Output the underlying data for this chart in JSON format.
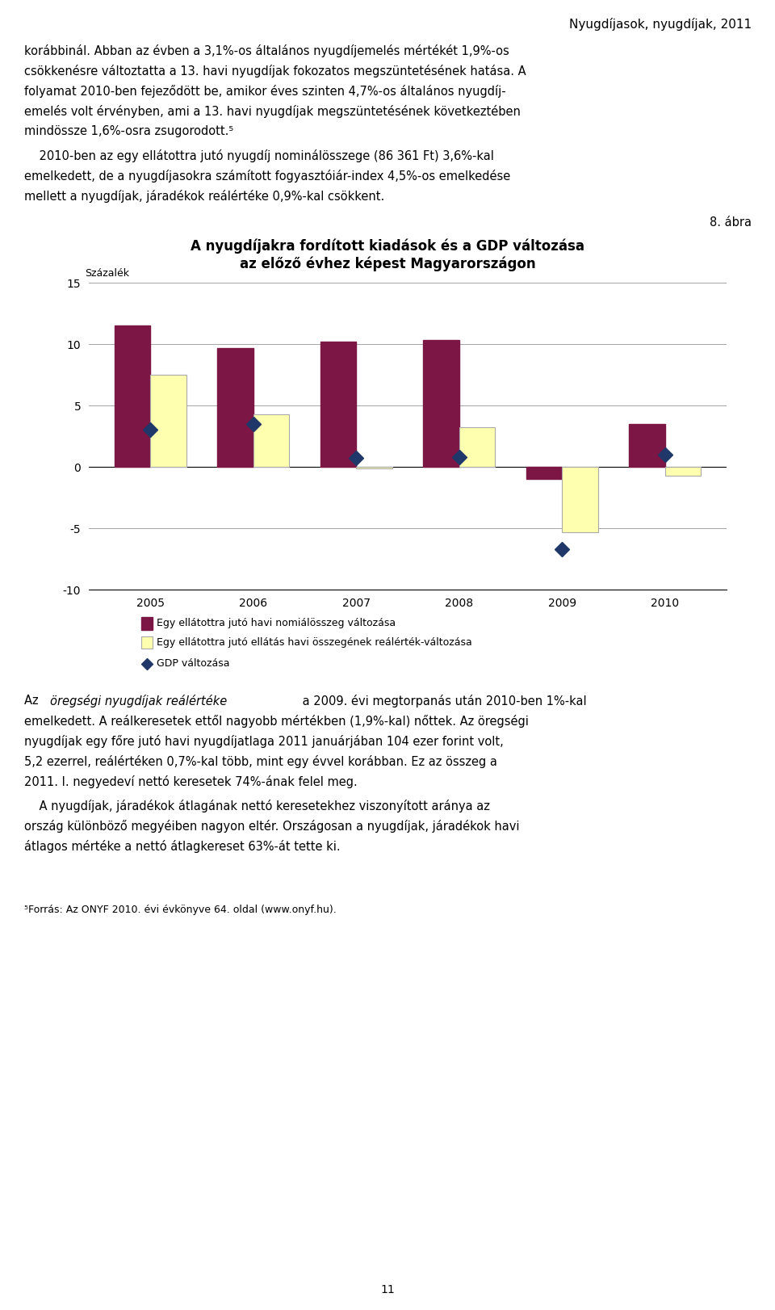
{
  "title_line1": "A nyugdíjakra fordított kiadások és a GDP változása",
  "title_line2": "az előző évhez képest Magyarországon",
  "ylabel": "Százalék",
  "caption": "8. ábra",
  "years": [
    2005,
    2006,
    2007,
    2008,
    2009,
    2010
  ],
  "nominal_bars": [
    11.5,
    9.7,
    10.2,
    10.3,
    -1.0,
    3.5
  ],
  "real_bars": [
    7.5,
    4.3,
    -0.1,
    3.2,
    -5.3,
    -0.7
  ],
  "gdp_line": [
    3.0,
    3.5,
    0.7,
    0.8,
    -6.7,
    1.0
  ],
  "nominal_color": "#7B1645",
  "real_color": "#FFFFB0",
  "gdp_color": "#1F3869",
  "ylim": [
    -10,
    15
  ],
  "yticks": [
    -10,
    -5,
    0,
    5,
    10,
    15
  ],
  "bar_width": 0.35,
  "legend_nominal": "Egy ellátottra jutó havi nomiálösszeg változása",
  "legend_real": "Egy ellátottra jutó ellátás havi összegének reálérték-változása",
  "legend_gdp": "GDP változása",
  "header_text": "Nyugdíjasok, nyugdíjak, 2011",
  "page_num": "11",
  "real_bar_edgecolor": "#AAAAAA",
  "nominal_bar_edgecolor": "#7B1645"
}
